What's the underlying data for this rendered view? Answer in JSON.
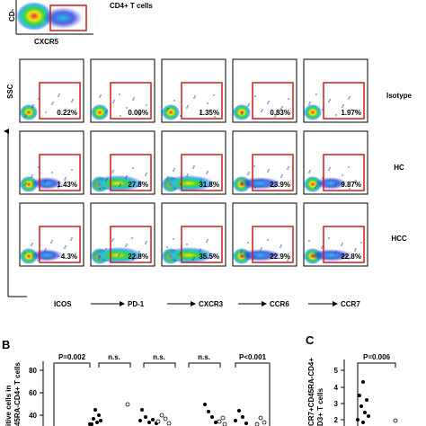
{
  "top_panel": {
    "y_axis_label": "CD-",
    "x_axis_label": "CXCR5",
    "gate_label": "CD4+ T cells"
  },
  "panel_a": {
    "y_axis_label": "SSC",
    "markers": [
      "ICOS",
      "PD-1",
      "CXCR3",
      "CCR6",
      "CCR7"
    ],
    "rows": [
      {
        "label": "Isotype",
        "values": [
          "0.22%",
          "0.00%",
          "1.35%",
          "0.83%",
          "1.97%"
        ]
      },
      {
        "label": "HC",
        "values": [
          "1.43%",
          "27.8%",
          "31.8%",
          "23.9%",
          "9.87%"
        ]
      },
      {
        "label": "HCC",
        "values": [
          "4.3%",
          "22.8%",
          "35.5%",
          "22.9%",
          "22.8%"
        ]
      }
    ],
    "colors": {
      "gate": "#d11a1a",
      "dot_blue": "#1a32d6",
      "dot_cyan": "#22c3e6",
      "dot_green": "#3fd23a",
      "dot_yellow": "#f2e21a",
      "dot_red": "#e8321e"
    }
  },
  "panel_b": {
    "letter": "B",
    "y_axis_label_1": "itive cells in",
    "y_axis_label_2": "45RA-CD4+ T cells",
    "ticks": [
      "80",
      "60",
      "40"
    ],
    "stats": [
      "P=0.002",
      "n.s.",
      "n.s.",
      "n.s.",
      "P<0.001"
    ]
  },
  "panel_c": {
    "letter": "C",
    "y_axis_label_1": "CR7+CD45RA-CD4+",
    "y_axis_label_2": "D3+ T cells",
    "ticks": [
      "5",
      "4",
      "3",
      "2"
    ],
    "stats": [
      "P=0.006"
    ]
  }
}
